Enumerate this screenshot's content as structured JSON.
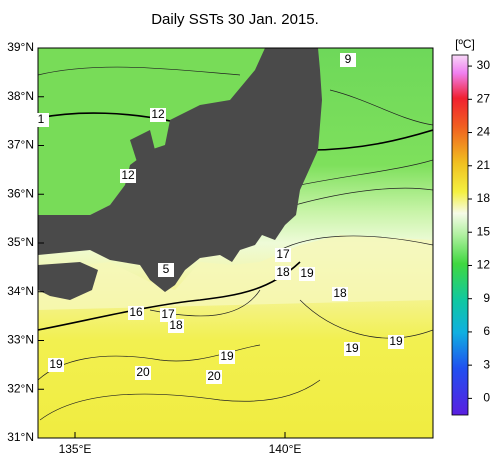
{
  "title": "Daily SSTs 30 Jan. 2015.",
  "lat_labels": [
    "39°N",
    "38°N",
    "37°N",
    "36°N",
    "35°N",
    "34°N",
    "33°N",
    "32°N",
    "31°N"
  ],
  "lon_labels": [
    "135°E",
    "140°E"
  ],
  "colorbar": {
    "unit": "[ºC]",
    "range": [
      -1.5,
      31
    ],
    "ticks": [
      30,
      27,
      24,
      21,
      18,
      15,
      12,
      9,
      6,
      3,
      0
    ]
  },
  "contour_labels": [
    "9",
    "1",
    "12",
    "12",
    "5",
    "17",
    "18",
    "19",
    "18",
    "16",
    "17",
    "18",
    "19",
    "20",
    "19",
    "20",
    "19",
    "19"
  ]
}
